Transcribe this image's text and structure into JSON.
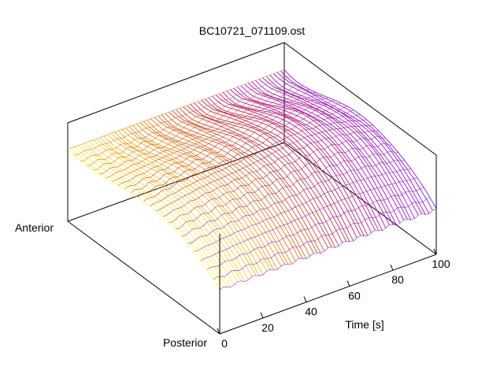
{
  "chart_data": {
    "type": "surface",
    "title": "BC10721_071109.ost",
    "xlabel": "Time [s]",
    "depth_labels": {
      "front": "Posterior",
      "back": "Anterior"
    },
    "x_ticks": [
      "0",
      "20",
      "40",
      "60",
      "80",
      "100"
    ],
    "xlim": [
      0,
      100
    ],
    "grid": false,
    "colormap": [
      "#ffff40",
      "#ffb000",
      "#e06000",
      "#c01040",
      "#a000c0",
      "#8000ff"
    ],
    "colormap_axis": "time",
    "series_x": [
      0,
      10,
      20,
      30,
      40,
      50,
      60,
      70,
      80,
      90,
      100
    ],
    "series_peak": [
      0.78,
      0.82,
      0.86,
      0.88,
      0.9,
      0.93,
      0.97,
      0.99,
      0.97,
      0.92,
      0.85
    ]
  }
}
